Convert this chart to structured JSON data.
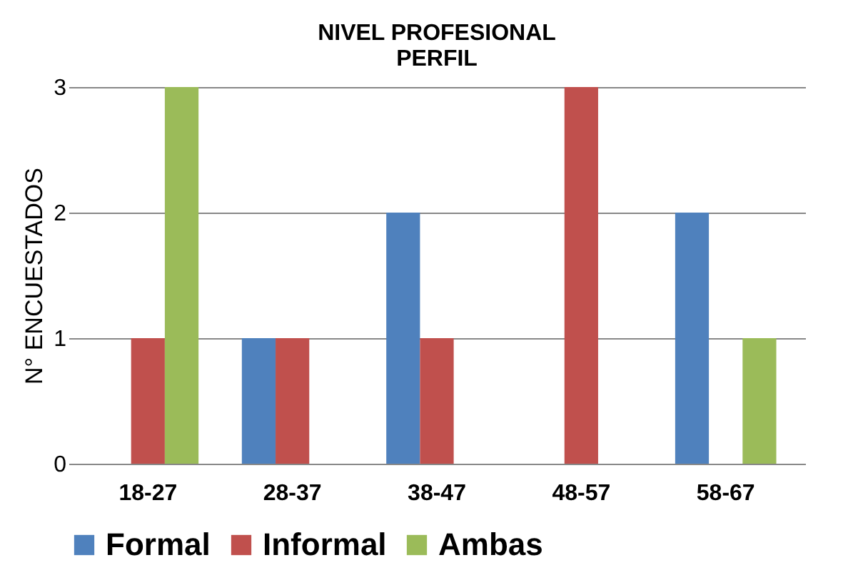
{
  "chart_data": {
    "type": "bar",
    "title": "NIVEL  PROFESIONAL\nPERFIL",
    "ylabel": "N° ENCUESTADOS",
    "categories": [
      "18-27",
      "28-37",
      "38-47",
      "48-57",
      "58-67"
    ],
    "series": [
      {
        "name": "Formal",
        "color": "#4f81bd",
        "values": [
          0,
          1,
          2,
          0,
          2
        ]
      },
      {
        "name": "Informal",
        "color": "#c0504d",
        "values": [
          1,
          1,
          1,
          3,
          0
        ]
      },
      {
        "name": "Ambas",
        "color": "#9bbb59",
        "values": [
          3,
          0,
          0,
          0,
          1
        ]
      }
    ],
    "ylim": [
      0,
      3
    ],
    "yticks": [
      0,
      1,
      2,
      3
    ],
    "grid": "y",
    "legend": "bottom"
  }
}
